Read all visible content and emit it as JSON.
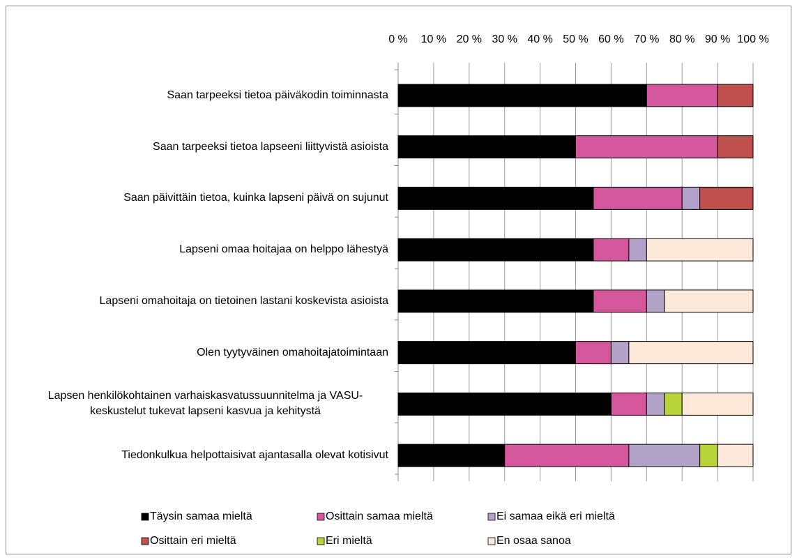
{
  "chart_data": {
    "type": "stacked_barh",
    "categories": [
      "Saan tarpeeksi tietoa päiväkodin toiminnasta",
      "Saan tarpeeksi tietoa lapseeni liittyvistä asioista",
      "Saan päivittäin tietoa, kuinka lapseni päivä on sujunut",
      "Lapseni omaa hoitajaa on helppo lähestyä",
      "Lapseni omahoitaja on tietoinen lastani koskevista asioista",
      "Olen tyytyväinen omahoitajatoimintaan",
      "Lapsen henkilökohtainen varhaiskasvatussuunnitelma ja VASU-keskustelut tukevat lapseni kasvua ja kehitystä",
      "Tiedonkulkua helpottaisivat ajantasalla olevat kotisivut"
    ],
    "series": [
      {
        "name": "Täysin samaa mieltä",
        "color": "#000000",
        "values": [
          70,
          50,
          55,
          55,
          55,
          50,
          60,
          30
        ]
      },
      {
        "name": "Osittain samaa mieltä",
        "color": "#d4579c",
        "values": [
          20,
          40,
          25,
          10,
          15,
          10,
          10,
          35
        ]
      },
      {
        "name": "Ei samaa eikä eri mieltä",
        "color": "#b3a2c7",
        "values": [
          0,
          0,
          5,
          5,
          5,
          5,
          5,
          20
        ]
      },
      {
        "name": "Osittain eri mieltä",
        "color": "#c0504d",
        "values": [
          10,
          10,
          15,
          0,
          0,
          0,
          0,
          0
        ]
      },
      {
        "name": "Eri mieltä",
        "color": "#b9d33a",
        "values": [
          0,
          0,
          0,
          0,
          0,
          0,
          5,
          5
        ]
      },
      {
        "name": "En osaa sanoa",
        "color": "#fde9d9",
        "values": [
          0,
          0,
          0,
          30,
          25,
          35,
          20,
          10
        ]
      }
    ],
    "xlim": [
      0,
      100
    ],
    "xticks": [
      {
        "value": 0,
        "label": "0 %"
      },
      {
        "value": 10,
        "label": "10 %"
      },
      {
        "value": 20,
        "label": "20 %"
      },
      {
        "value": 30,
        "label": "30 %"
      },
      {
        "value": 40,
        "label": "40 %"
      },
      {
        "value": 50,
        "label": "50 %"
      },
      {
        "value": 60,
        "label": "60 %"
      },
      {
        "value": 70,
        "label": "70 %"
      },
      {
        "value": 80,
        "label": "80 %"
      },
      {
        "value": 90,
        "label": "90 %"
      },
      {
        "value": 100,
        "label": "100 %"
      }
    ],
    "grid": true,
    "legend": "bottom"
  }
}
